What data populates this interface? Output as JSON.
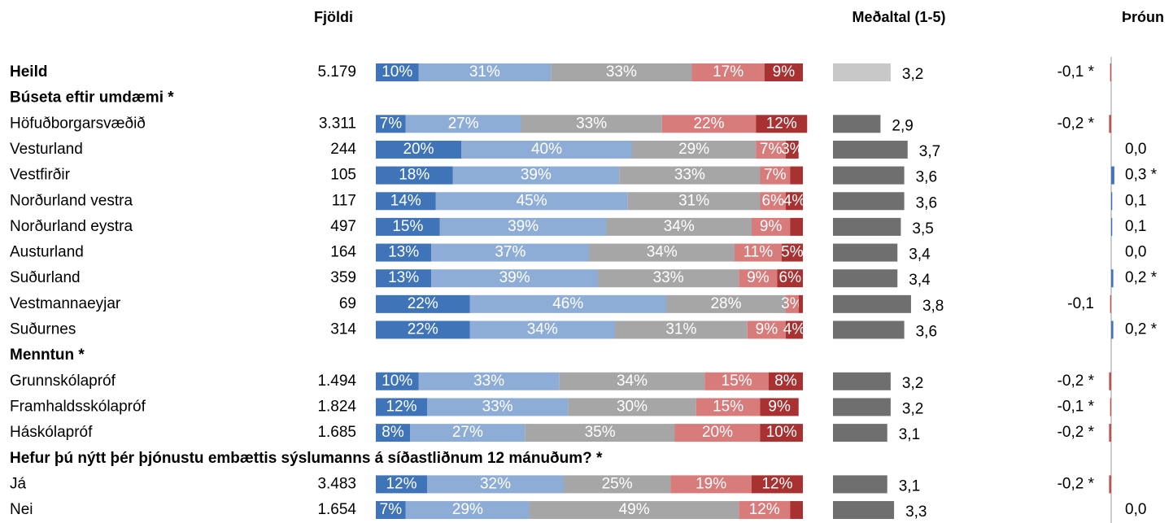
{
  "chart_data": {
    "type": "stacked-bar-table",
    "columns": {
      "count": "Fjöldi",
      "mean": "Meðaltal (1-5)",
      "trend": "Þróun"
    },
    "share_colors": [
      "#3f74b8",
      "#8eadd6",
      "#a6a6a6",
      "#d77b7b",
      "#a83232"
    ],
    "share_xlim": [
      0,
      100
    ],
    "mean_xlim": [
      1.5,
      5
    ],
    "mean_color": "#6f6f6f",
    "total_mean_color": "#c8c8c8",
    "trend_colors": {
      "negative": "#c0504d",
      "positive": "#3f74b8"
    },
    "rows": [
      {
        "label": "Heild",
        "bold": true,
        "total": true,
        "n": 5179,
        "n_label": "5.179",
        "shares": [
          10,
          31,
          33,
          17,
          9
        ],
        "share_labels": [
          "10%",
          "31%",
          "33%",
          "17%",
          "9%"
        ],
        "mean": 3.2,
        "mean_label": "3,2",
        "trend": -0.1,
        "trend_label": "-0,1 *"
      },
      {
        "label": "Búseta eftir umdæmi *",
        "bold": true
      },
      {
        "label": "Höfuðborgarsvæðið",
        "n": 3311,
        "n_label": "3.311",
        "shares": [
          7,
          27,
          33,
          22,
          12
        ],
        "share_labels": [
          "7%",
          "27%",
          "33%",
          "22%",
          "12%"
        ],
        "mean": 2.9,
        "mean_label": "2,9",
        "trend": -0.2,
        "trend_label": "-0,2 *"
      },
      {
        "label": "Vesturland",
        "n": 244,
        "n_label": "244",
        "shares": [
          20,
          40,
          29,
          7,
          3
        ],
        "share_labels": [
          "20%",
          "40%",
          "29%",
          "7%",
          "3%"
        ],
        "mean": 3.7,
        "mean_label": "3,7",
        "trend": 0.0,
        "trend_label": "0,0"
      },
      {
        "label": "Vestfirðir",
        "n": 105,
        "n_label": "105",
        "shares": [
          18,
          39,
          33,
          7,
          3
        ],
        "share_labels": [
          "18%",
          "39%",
          "33%",
          "7%",
          null
        ],
        "mean": 3.6,
        "mean_label": "3,6",
        "trend": 0.3,
        "trend_label": "0,3 *"
      },
      {
        "label": "Norðurland vestra",
        "n": 117,
        "n_label": "117",
        "shares": [
          14,
          45,
          31,
          6,
          4
        ],
        "share_labels": [
          "14%",
          "45%",
          "31%",
          "6%",
          "4%"
        ],
        "mean": 3.6,
        "mean_label": "3,6",
        "trend": 0.1,
        "trend_label": "0,1"
      },
      {
        "label": "Norðurland eystra",
        "n": 497,
        "n_label": "497",
        "shares": [
          15,
          39,
          34,
          9,
          3
        ],
        "share_labels": [
          "15%",
          "39%",
          "34%",
          "9%",
          null
        ],
        "mean": 3.5,
        "mean_label": "3,5",
        "trend": 0.1,
        "trend_label": "0,1"
      },
      {
        "label": "Austurland",
        "n": 164,
        "n_label": "164",
        "shares": [
          13,
          37,
          34,
          11,
          5
        ],
        "share_labels": [
          "13%",
          "37%",
          "34%",
          "11%",
          "5%"
        ],
        "mean": 3.4,
        "mean_label": "3,4",
        "trend": 0.0,
        "trend_label": "0,0"
      },
      {
        "label": "Suðurland",
        "n": 359,
        "n_label": "359",
        "shares": [
          13,
          39,
          33,
          9,
          6
        ],
        "share_labels": [
          "13%",
          "39%",
          "33%",
          "9%",
          "6%"
        ],
        "mean": 3.4,
        "mean_label": "3,4",
        "trend": 0.2,
        "trend_label": "0,2 *"
      },
      {
        "label": "Vestmannaeyjar",
        "n": 69,
        "n_label": "69",
        "shares": [
          22,
          46,
          28,
          3,
          1
        ],
        "share_labels": [
          "22%",
          "46%",
          "28%",
          "3%",
          null
        ],
        "mean": 3.8,
        "mean_label": "3,8",
        "trend": -0.1,
        "trend_label": "-0,1"
      },
      {
        "label": "Suðurnes",
        "n": 314,
        "n_label": "314",
        "shares": [
          22,
          34,
          31,
          9,
          4
        ],
        "share_labels": [
          "22%",
          "34%",
          "31%",
          "9%",
          "4%"
        ],
        "mean": 3.6,
        "mean_label": "3,6",
        "trend": 0.2,
        "trend_label": "0,2 *"
      },
      {
        "label": "Menntun *",
        "bold": true
      },
      {
        "label": "Grunnskólapróf",
        "n": 1494,
        "n_label": "1.494",
        "shares": [
          10,
          33,
          34,
          15,
          8
        ],
        "share_labels": [
          "10%",
          "33%",
          "34%",
          "15%",
          "8%"
        ],
        "mean": 3.2,
        "mean_label": "3,2",
        "trend": -0.2,
        "trend_label": "-0,2 *"
      },
      {
        "label": "Framhaldsskólapróf",
        "n": 1824,
        "n_label": "1.824",
        "shares": [
          12,
          33,
          30,
          15,
          9
        ],
        "share_labels": [
          "12%",
          "33%",
          "30%",
          "15%",
          "9%"
        ],
        "mean": 3.2,
        "mean_label": "3,2",
        "trend": -0.1,
        "trend_label": "-0,1 *"
      },
      {
        "label": "Háskólapróf",
        "n": 1685,
        "n_label": "1.685",
        "shares": [
          8,
          27,
          35,
          20,
          10
        ],
        "share_labels": [
          "8%",
          "27%",
          "35%",
          "20%",
          "10%"
        ],
        "mean": 3.1,
        "mean_label": "3,1",
        "trend": -0.2,
        "trend_label": "-0,2 *"
      },
      {
        "label": "Hefur þú nýtt þér þjónustu embættis sýslumanns á síðastliðnum 12 mánuðum? *",
        "bold": true
      },
      {
        "label": "Já",
        "n": 3483,
        "n_label": "3.483",
        "shares": [
          12,
          32,
          25,
          19,
          12
        ],
        "share_labels": [
          "12%",
          "32%",
          "25%",
          "19%",
          "12%"
        ],
        "mean": 3.1,
        "mean_label": "3,1",
        "trend": -0.2,
        "trend_label": "-0,2 *"
      },
      {
        "label": "Nei",
        "n": 1654,
        "n_label": "1.654",
        "shares": [
          7,
          29,
          49,
          12,
          3
        ],
        "share_labels": [
          "7%",
          "29%",
          "49%",
          "12%",
          null
        ],
        "mean": 3.3,
        "mean_label": "3,3",
        "trend": 0.0,
        "trend_label": "0,0"
      }
    ]
  }
}
